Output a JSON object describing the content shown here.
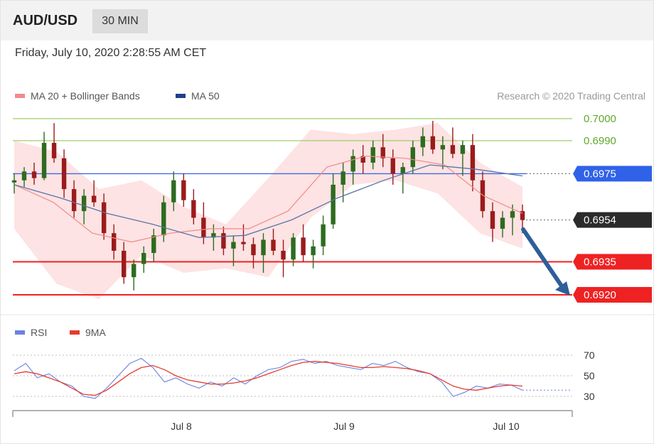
{
  "header": {
    "pair": "AUD/USD",
    "timeframe": "30 MIN"
  },
  "timestamp": "Friday, July 10, 2020 2:28:55 AM CET",
  "legend": {
    "ma20": "MA 20 + Bollinger Bands",
    "ma50": "MA 50",
    "credit": "Research © 2020 Trading Central"
  },
  "rsi_legend": {
    "rsi": "RSI",
    "ma9": "9MA"
  },
  "colors": {
    "up": "#2e6b1f",
    "down": "#9b1b1b",
    "bb_fill": "#fde3e3",
    "ma20": "#f08a8a",
    "ma50": "#5b73a8",
    "resistance": "#9ccf6a",
    "pivot": "#2f62e8",
    "support": "#ee2222",
    "last": "#2b2b2b",
    "arrow": "#2d5f99",
    "rsi": "#6b82e0",
    "rsi_ma": "#e53b2f"
  },
  "levels": [
    {
      "label": "0.7000",
      "kind": "resistance"
    },
    {
      "label": "0.6990",
      "kind": "resistance"
    },
    {
      "label": "0.6975",
      "kind": "pivot"
    },
    {
      "label": "0.6954",
      "kind": "last"
    },
    {
      "label": "0.6935",
      "kind": "support"
    },
    {
      "label": "0.6920",
      "kind": "support"
    }
  ],
  "chart_data": [
    {
      "type": "candlestick",
      "title": "AUD/USD",
      "timeframe": "30 MIN",
      "ylim": [
        0.6918,
        0.7004
      ],
      "x_ticks": [
        "Jul 8",
        "Jul 9",
        "Jul 10"
      ],
      "levels": [
        0.7,
        0.699,
        0.6975,
        0.6954,
        0.6935,
        0.692
      ],
      "series": [
        {
          "name": "MA 20 + Bollinger Bands",
          "approx_values": [
            0.697,
            0.6962,
            0.6948,
            0.6944,
            0.6948,
            0.695,
            0.695,
            0.6958,
            0.6978,
            0.6983,
            0.6982,
            0.6979,
            0.6965,
            0.6957
          ],
          "bb_upper_approx": [
            0.699,
            0.6985,
            0.6968,
            0.6972,
            0.696,
            0.6952,
            0.6973,
            0.6995,
            0.6993,
            0.6995,
            0.6998,
            0.698,
            0.6969
          ],
          "bb_lower_approx": [
            0.695,
            0.6925,
            0.6918,
            0.6938,
            0.693,
            0.6932,
            0.6928,
            0.6955,
            0.697,
            0.6972,
            0.6966,
            0.6948,
            0.6941
          ]
        },
        {
          "name": "MA 50",
          "approx_values": [
            0.697,
            0.6964,
            0.6957,
            0.6952,
            0.6946,
            0.6947,
            0.6954,
            0.6964,
            0.6972,
            0.6979,
            0.6977,
            0.6974
          ]
        }
      ],
      "candles_approx": [
        [
          0.6971,
          0.6975,
          0.6966,
          0.6972
        ],
        [
          0.6972,
          0.6978,
          0.6969,
          0.6976
        ],
        [
          0.6976,
          0.698,
          0.697,
          0.6973
        ],
        [
          0.6973,
          0.6994,
          0.6972,
          0.6989
        ],
        [
          0.6989,
          0.6998,
          0.698,
          0.6982
        ],
        [
          0.6982,
          0.6986,
          0.6964,
          0.6968
        ],
        [
          0.6968,
          0.6972,
          0.6955,
          0.6958
        ],
        [
          0.6958,
          0.6968,
          0.6952,
          0.6965
        ],
        [
          0.6965,
          0.6972,
          0.696,
          0.6962
        ],
        [
          0.6962,
          0.6966,
          0.6945,
          0.6948
        ],
        [
          0.6948,
          0.6952,
          0.6936,
          0.694
        ],
        [
          0.694,
          0.6944,
          0.6925,
          0.6928
        ],
        [
          0.6928,
          0.6936,
          0.6922,
          0.6934
        ],
        [
          0.6934,
          0.6942,
          0.693,
          0.6939
        ],
        [
          0.6939,
          0.695,
          0.6935,
          0.6947
        ],
        [
          0.6947,
          0.6965,
          0.6944,
          0.6962
        ],
        [
          0.6962,
          0.6976,
          0.6958,
          0.6972
        ],
        [
          0.6972,
          0.6975,
          0.696,
          0.6963
        ],
        [
          0.6963,
          0.6968,
          0.6952,
          0.6955
        ],
        [
          0.6955,
          0.6962,
          0.6943,
          0.6946
        ],
        [
          0.6946,
          0.6952,
          0.694,
          0.6948
        ],
        [
          0.6948,
          0.6951,
          0.6938,
          0.6941
        ],
        [
          0.6941,
          0.6947,
          0.6933,
          0.6944
        ],
        [
          0.6944,
          0.6952,
          0.694,
          0.6943
        ],
        [
          0.6943,
          0.6946,
          0.6932,
          0.6938
        ],
        [
          0.6938,
          0.6948,
          0.693,
          0.6945
        ],
        [
          0.6945,
          0.695,
          0.6938,
          0.694
        ],
        [
          0.694,
          0.6945,
          0.6928,
          0.6936
        ],
        [
          0.6936,
          0.6948,
          0.6933,
          0.6946
        ],
        [
          0.6946,
          0.6952,
          0.6935,
          0.6938
        ],
        [
          0.6938,
          0.6945,
          0.6932,
          0.6942
        ],
        [
          0.6942,
          0.6956,
          0.6938,
          0.6952
        ],
        [
          0.6952,
          0.6975,
          0.695,
          0.697
        ],
        [
          0.697,
          0.698,
          0.6962,
          0.6976
        ],
        [
          0.6976,
          0.6986,
          0.697,
          0.6983
        ],
        [
          0.6983,
          0.6988,
          0.6975,
          0.698
        ],
        [
          0.698,
          0.699,
          0.6977,
          0.6987
        ],
        [
          0.6987,
          0.6993,
          0.6978,
          0.6982
        ],
        [
          0.6982,
          0.6986,
          0.697,
          0.6975
        ],
        [
          0.6975,
          0.698,
          0.6966,
          0.6978
        ],
        [
          0.6978,
          0.699,
          0.6975,
          0.6987
        ],
        [
          0.6987,
          0.6996,
          0.6983,
          0.6992
        ],
        [
          0.6992,
          0.6999,
          0.6984,
          0.6986
        ],
        [
          0.6986,
          0.6992,
          0.6977,
          0.6988
        ],
        [
          0.6988,
          0.6996,
          0.6982,
          0.6984
        ],
        [
          0.6984,
          0.699,
          0.6974,
          0.6988
        ],
        [
          0.6988,
          0.6993,
          0.6967,
          0.6972
        ],
        [
          0.6972,
          0.6976,
          0.6955,
          0.6958
        ],
        [
          0.6958,
          0.6962,
          0.6944,
          0.695
        ],
        [
          0.695,
          0.6958,
          0.6946,
          0.6955
        ],
        [
          0.6955,
          0.6961,
          0.6947,
          0.6958
        ],
        [
          0.6958,
          0.6961,
          0.6948,
          0.6954
        ]
      ]
    },
    {
      "type": "line",
      "xlabel": "",
      "ylabel": "",
      "ylim": [
        20,
        75
      ],
      "y_ticks": [
        70,
        50,
        30
      ],
      "x_ticks": [
        "Jul 8",
        "Jul 9",
        "Jul 10"
      ],
      "series": [
        {
          "name": "RSI",
          "approx_values": [
            55,
            62,
            48,
            52,
            44,
            40,
            30,
            28,
            38,
            50,
            62,
            67,
            58,
            44,
            48,
            42,
            38,
            44,
            40,
            48,
            42,
            50,
            56,
            58,
            64,
            66,
            62,
            64,
            60,
            58,
            56,
            62,
            60,
            64,
            58,
            54,
            52,
            44,
            30,
            34,
            40,
            38,
            42,
            41,
            36
          ]
        },
        {
          "name": "9MA",
          "approx_values": [
            52,
            54,
            52,
            48,
            44,
            38,
            32,
            31,
            36,
            44,
            52,
            58,
            60,
            56,
            50,
            46,
            44,
            42,
            42,
            43,
            45,
            48,
            52,
            56,
            60,
            63,
            64,
            63,
            62,
            60,
            58,
            58,
            59,
            58,
            57,
            55,
            52,
            46,
            40,
            37,
            36,
            38,
            40,
            41,
            40
          ]
        }
      ]
    }
  ]
}
